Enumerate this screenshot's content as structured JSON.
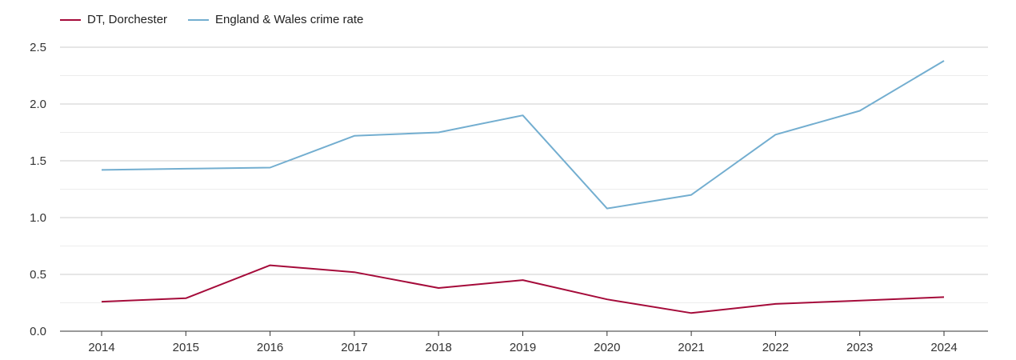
{
  "chart_data": {
    "type": "line",
    "categories": [
      "2014",
      "2015",
      "2016",
      "2017",
      "2018",
      "2019",
      "2020",
      "2021",
      "2022",
      "2023",
      "2024"
    ],
    "series": [
      {
        "name": "DT, Dorchester",
        "color": "#a50b3a",
        "values": [
          0.26,
          0.29,
          0.58,
          0.52,
          0.38,
          0.45,
          0.28,
          0.16,
          0.24,
          0.27,
          0.3
        ]
      },
      {
        "name": "England & Wales crime rate",
        "color": "#73aed0",
        "values": [
          1.42,
          1.43,
          1.44,
          1.72,
          1.75,
          1.9,
          1.08,
          1.2,
          1.73,
          1.94,
          2.38
        ]
      }
    ],
    "yticks": [
      "0.0",
      "0.5",
      "1.0",
      "1.5",
      "2.0",
      "2.5"
    ],
    "ylim": [
      0,
      2.5
    ],
    "title": "",
    "xlabel": "",
    "ylabel": "",
    "grid": true,
    "legend_position": "top-left"
  }
}
